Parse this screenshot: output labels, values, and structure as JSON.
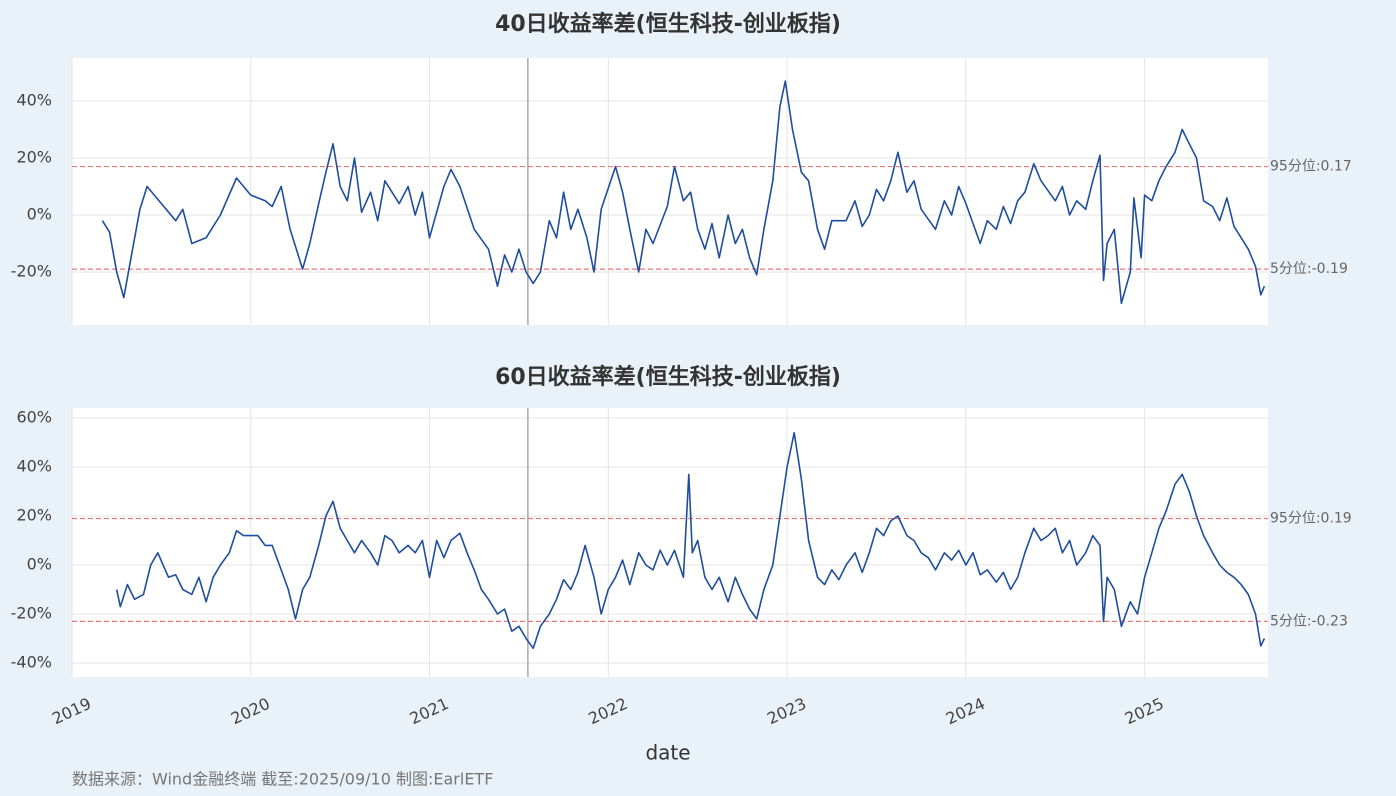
{
  "chart_data": [
    {
      "type": "line",
      "title": "40日收益率差(恒生科技-创业板指)",
      "color": "#1f4e9c",
      "xlim": [
        2019,
        2025.69
      ],
      "ylim": [
        -0.386,
        0.551
      ],
      "yticks": [
        {
          "value": -0.2,
          "label": "-20%"
        },
        {
          "value": 0,
          "label": "0%"
        },
        {
          "value": 0.2,
          "label": "20%"
        },
        {
          "value": 0.4,
          "label": "40%"
        }
      ],
      "grid": true,
      "reference_lines": [
        {
          "value": 0.17,
          "label": "95分位:0.17"
        },
        {
          "value": -0.19,
          "label": "5分位:-0.19"
        }
      ],
      "x": [
        2019.17,
        2019.21,
        2019.25,
        2019.29,
        2019.33,
        2019.38,
        2019.42,
        2019.5,
        2019.58,
        2019.62,
        2019.67,
        2019.75,
        2019.83,
        2019.92,
        2020.0,
        2020.08,
        2020.12,
        2020.17,
        2020.22,
        2020.29,
        2020.33,
        2020.38,
        2020.42,
        2020.46,
        2020.5,
        2020.54,
        2020.58,
        2020.62,
        2020.67,
        2020.71,
        2020.75,
        2020.83,
        2020.88,
        2020.92,
        2020.96,
        2021.0,
        2021.08,
        2021.12,
        2021.17,
        2021.25,
        2021.33,
        2021.38,
        2021.42,
        2021.46,
        2021.5,
        2021.54,
        2021.58,
        2021.62,
        2021.67,
        2021.71,
        2021.75,
        2021.79,
        2021.83,
        2021.88,
        2021.92,
        2021.96,
        2022.04,
        2022.08,
        2022.12,
        2022.17,
        2022.21,
        2022.25,
        2022.33,
        2022.37,
        2022.42,
        2022.46,
        2022.5,
        2022.54,
        2022.58,
        2022.62,
        2022.67,
        2022.71,
        2022.75,
        2022.79,
        2022.83,
        2022.87,
        2022.92,
        2022.96,
        2022.99,
        2023.03,
        2023.08,
        2023.12,
        2023.17,
        2023.21,
        2023.25,
        2023.33,
        2023.38,
        2023.42,
        2023.46,
        2023.5,
        2023.54,
        2023.58,
        2023.62,
        2023.67,
        2023.71,
        2023.75,
        2023.83,
        2023.88,
        2023.92,
        2023.96,
        2024.0,
        2024.08,
        2024.12,
        2024.17,
        2024.21,
        2024.25,
        2024.29,
        2024.33,
        2024.38,
        2024.42,
        2024.5,
        2024.54,
        2024.58,
        2024.62,
        2024.67,
        2024.71,
        2024.75,
        2024.77,
        2024.79,
        2024.83,
        2024.87,
        2024.92,
        2024.94,
        2024.98,
        2025.0,
        2025.04,
        2025.08,
        2025.12,
        2025.17,
        2025.21,
        2025.25,
        2025.29,
        2025.33,
        2025.38,
        2025.42,
        2025.46,
        2025.5,
        2025.54,
        2025.58,
        2025.62,
        2025.65,
        2025.67
      ],
      "values": [
        -0.02,
        -0.06,
        -0.2,
        -0.29,
        -0.15,
        0.02,
        0.1,
        0.04,
        -0.02,
        0.02,
        -0.1,
        -0.08,
        0.0,
        0.13,
        0.07,
        0.05,
        0.03,
        0.1,
        -0.05,
        -0.19,
        -0.1,
        0.04,
        0.15,
        0.25,
        0.1,
        0.05,
        0.2,
        0.01,
        0.08,
        -0.02,
        0.12,
        0.04,
        0.1,
        0.0,
        0.08,
        -0.08,
        0.1,
        0.16,
        0.1,
        -0.05,
        -0.12,
        -0.25,
        -0.14,
        -0.2,
        -0.12,
        -0.2,
        -0.24,
        -0.2,
        -0.02,
        -0.08,
        0.08,
        -0.05,
        0.02,
        -0.08,
        -0.2,
        0.02,
        0.17,
        0.08,
        -0.05,
        -0.2,
        -0.05,
        -0.1,
        0.03,
        0.17,
        0.05,
        0.08,
        -0.05,
        -0.12,
        -0.03,
        -0.15,
        0.0,
        -0.1,
        -0.05,
        -0.15,
        -0.21,
        -0.05,
        0.12,
        0.38,
        0.47,
        0.3,
        0.15,
        0.12,
        -0.05,
        -0.12,
        -0.02,
        -0.02,
        0.05,
        -0.04,
        0.0,
        0.09,
        0.05,
        0.12,
        0.22,
        0.08,
        0.12,
        0.02,
        -0.05,
        0.05,
        0.0,
        0.1,
        0.04,
        -0.1,
        -0.02,
        -0.05,
        0.03,
        -0.03,
        0.05,
        0.08,
        0.18,
        0.12,
        0.05,
        0.1,
        0.0,
        0.05,
        0.02,
        0.12,
        0.21,
        -0.23,
        -0.1,
        -0.05,
        -0.31,
        -0.2,
        0.06,
        -0.15,
        0.07,
        0.05,
        0.12,
        0.17,
        0.22,
        0.3,
        0.25,
        0.2,
        0.05,
        0.03,
        -0.02,
        0.06,
        -0.04,
        -0.08,
        -0.12,
        -0.18,
        -0.28,
        -0.25
      ]
    },
    {
      "type": "line",
      "title": "60日收益率差(恒生科技-创业板指)",
      "color": "#1f4e9c",
      "xlim": [
        2019,
        2025.69
      ],
      "ylim": [
        -0.457,
        0.641
      ],
      "xticks": [
        2019,
        2020,
        2021,
        2022,
        2023,
        2024,
        2025
      ],
      "xlabel": "date",
      "yticks": [
        {
          "value": -0.4,
          "label": "-40%"
        },
        {
          "value": -0.2,
          "label": "-20%"
        },
        {
          "value": 0,
          "label": "0%"
        },
        {
          "value": 0.2,
          "label": "20%"
        },
        {
          "value": 0.4,
          "label": "40%"
        },
        {
          "value": 0.6,
          "label": "60%"
        }
      ],
      "grid": true,
      "reference_lines": [
        {
          "value": 0.19,
          "label": "95分位:0.19"
        },
        {
          "value": -0.23,
          "label": "5分位:-0.23"
        }
      ],
      "x": [
        2019.25,
        2019.27,
        2019.31,
        2019.35,
        2019.4,
        2019.44,
        2019.48,
        2019.54,
        2019.58,
        2019.62,
        2019.67,
        2019.71,
        2019.75,
        2019.79,
        2019.83,
        2019.88,
        2019.92,
        2019.96,
        2020.04,
        2020.08,
        2020.12,
        2020.17,
        2020.21,
        2020.25,
        2020.29,
        2020.33,
        2020.38,
        2020.42,
        2020.46,
        2020.5,
        2020.54,
        2020.58,
        2020.62,
        2020.67,
        2020.71,
        2020.75,
        2020.79,
        2020.83,
        2020.88,
        2020.92,
        2020.96,
        2021.0,
        2021.04,
        2021.08,
        2021.12,
        2021.17,
        2021.21,
        2021.25,
        2021.29,
        2021.33,
        2021.38,
        2021.42,
        2021.46,
        2021.5,
        2021.54,
        2021.58,
        2021.62,
        2021.67,
        2021.71,
        2021.75,
        2021.79,
        2021.83,
        2021.87,
        2021.92,
        2021.96,
        2022.0,
        2022.04,
        2022.08,
        2022.12,
        2022.17,
        2022.21,
        2022.25,
        2022.29,
        2022.33,
        2022.37,
        2022.42,
        2022.45,
        2022.47,
        2022.5,
        2022.54,
        2022.58,
        2022.62,
        2022.67,
        2022.71,
        2022.75,
        2022.79,
        2022.83,
        2022.87,
        2022.92,
        2022.96,
        2023.0,
        2023.04,
        2023.08,
        2023.12,
        2023.17,
        2023.21,
        2023.25,
        2023.29,
        2023.33,
        2023.38,
        2023.42,
        2023.46,
        2023.5,
        2023.54,
        2023.58,
        2023.62,
        2023.67,
        2023.71,
        2023.75,
        2023.79,
        2023.83,
        2023.88,
        2023.92,
        2023.96,
        2024.0,
        2024.04,
        2024.08,
        2024.12,
        2024.17,
        2024.21,
        2024.25,
        2024.29,
        2024.33,
        2024.38,
        2024.42,
        2024.46,
        2024.5,
        2024.54,
        2024.58,
        2024.62,
        2024.67,
        2024.71,
        2024.75,
        2024.77,
        2024.79,
        2024.83,
        2024.87,
        2024.92,
        2024.96,
        2025.0,
        2025.04,
        2025.08,
        2025.12,
        2025.17,
        2025.21,
        2025.25,
        2025.29,
        2025.33,
        2025.38,
        2025.42,
        2025.46,
        2025.5,
        2025.54,
        2025.58,
        2025.62,
        2025.65,
        2025.67
      ],
      "values": [
        -0.1,
        -0.17,
        -0.08,
        -0.14,
        -0.12,
        0.0,
        0.05,
        -0.05,
        -0.04,
        -0.1,
        -0.12,
        -0.05,
        -0.15,
        -0.05,
        0.0,
        0.05,
        0.14,
        0.12,
        0.12,
        0.08,
        0.08,
        -0.02,
        -0.1,
        -0.22,
        -0.1,
        -0.05,
        0.08,
        0.2,
        0.26,
        0.15,
        0.1,
        0.05,
        0.1,
        0.05,
        0.0,
        0.12,
        0.1,
        0.05,
        0.08,
        0.05,
        0.1,
        -0.05,
        0.1,
        0.03,
        0.1,
        0.13,
        0.05,
        -0.02,
        -0.1,
        -0.14,
        -0.2,
        -0.18,
        -0.27,
        -0.25,
        -0.3,
        -0.34,
        -0.25,
        -0.2,
        -0.14,
        -0.06,
        -0.1,
        -0.03,
        0.08,
        -0.05,
        -0.2,
        -0.1,
        -0.05,
        0.02,
        -0.08,
        0.05,
        0.0,
        -0.02,
        0.06,
        0.0,
        0.06,
        -0.05,
        0.37,
        0.05,
        0.1,
        -0.05,
        -0.1,
        -0.05,
        -0.15,
        -0.05,
        -0.12,
        -0.18,
        -0.22,
        -0.1,
        0.0,
        0.2,
        0.4,
        0.54,
        0.35,
        0.1,
        -0.05,
        -0.08,
        -0.02,
        -0.06,
        0.0,
        0.05,
        -0.03,
        0.05,
        0.15,
        0.12,
        0.18,
        0.2,
        0.12,
        0.1,
        0.05,
        0.03,
        -0.02,
        0.05,
        0.02,
        0.06,
        0.0,
        0.05,
        -0.04,
        -0.02,
        -0.07,
        -0.03,
        -0.1,
        -0.05,
        0.05,
        0.15,
        0.1,
        0.12,
        0.15,
        0.05,
        0.1,
        0.0,
        0.05,
        0.12,
        0.08,
        -0.23,
        -0.05,
        -0.1,
        -0.25,
        -0.15,
        -0.2,
        -0.05,
        0.05,
        0.15,
        0.22,
        0.33,
        0.37,
        0.3,
        0.2,
        0.12,
        0.05,
        0.0,
        -0.03,
        -0.05,
        -0.08,
        -0.12,
        -0.2,
        -0.33,
        -0.3
      ]
    }
  ],
  "cursor_x": 2021.55,
  "source": "数据来源：Wind金融终端 截至:2025/09/10 制图:EarlETF"
}
